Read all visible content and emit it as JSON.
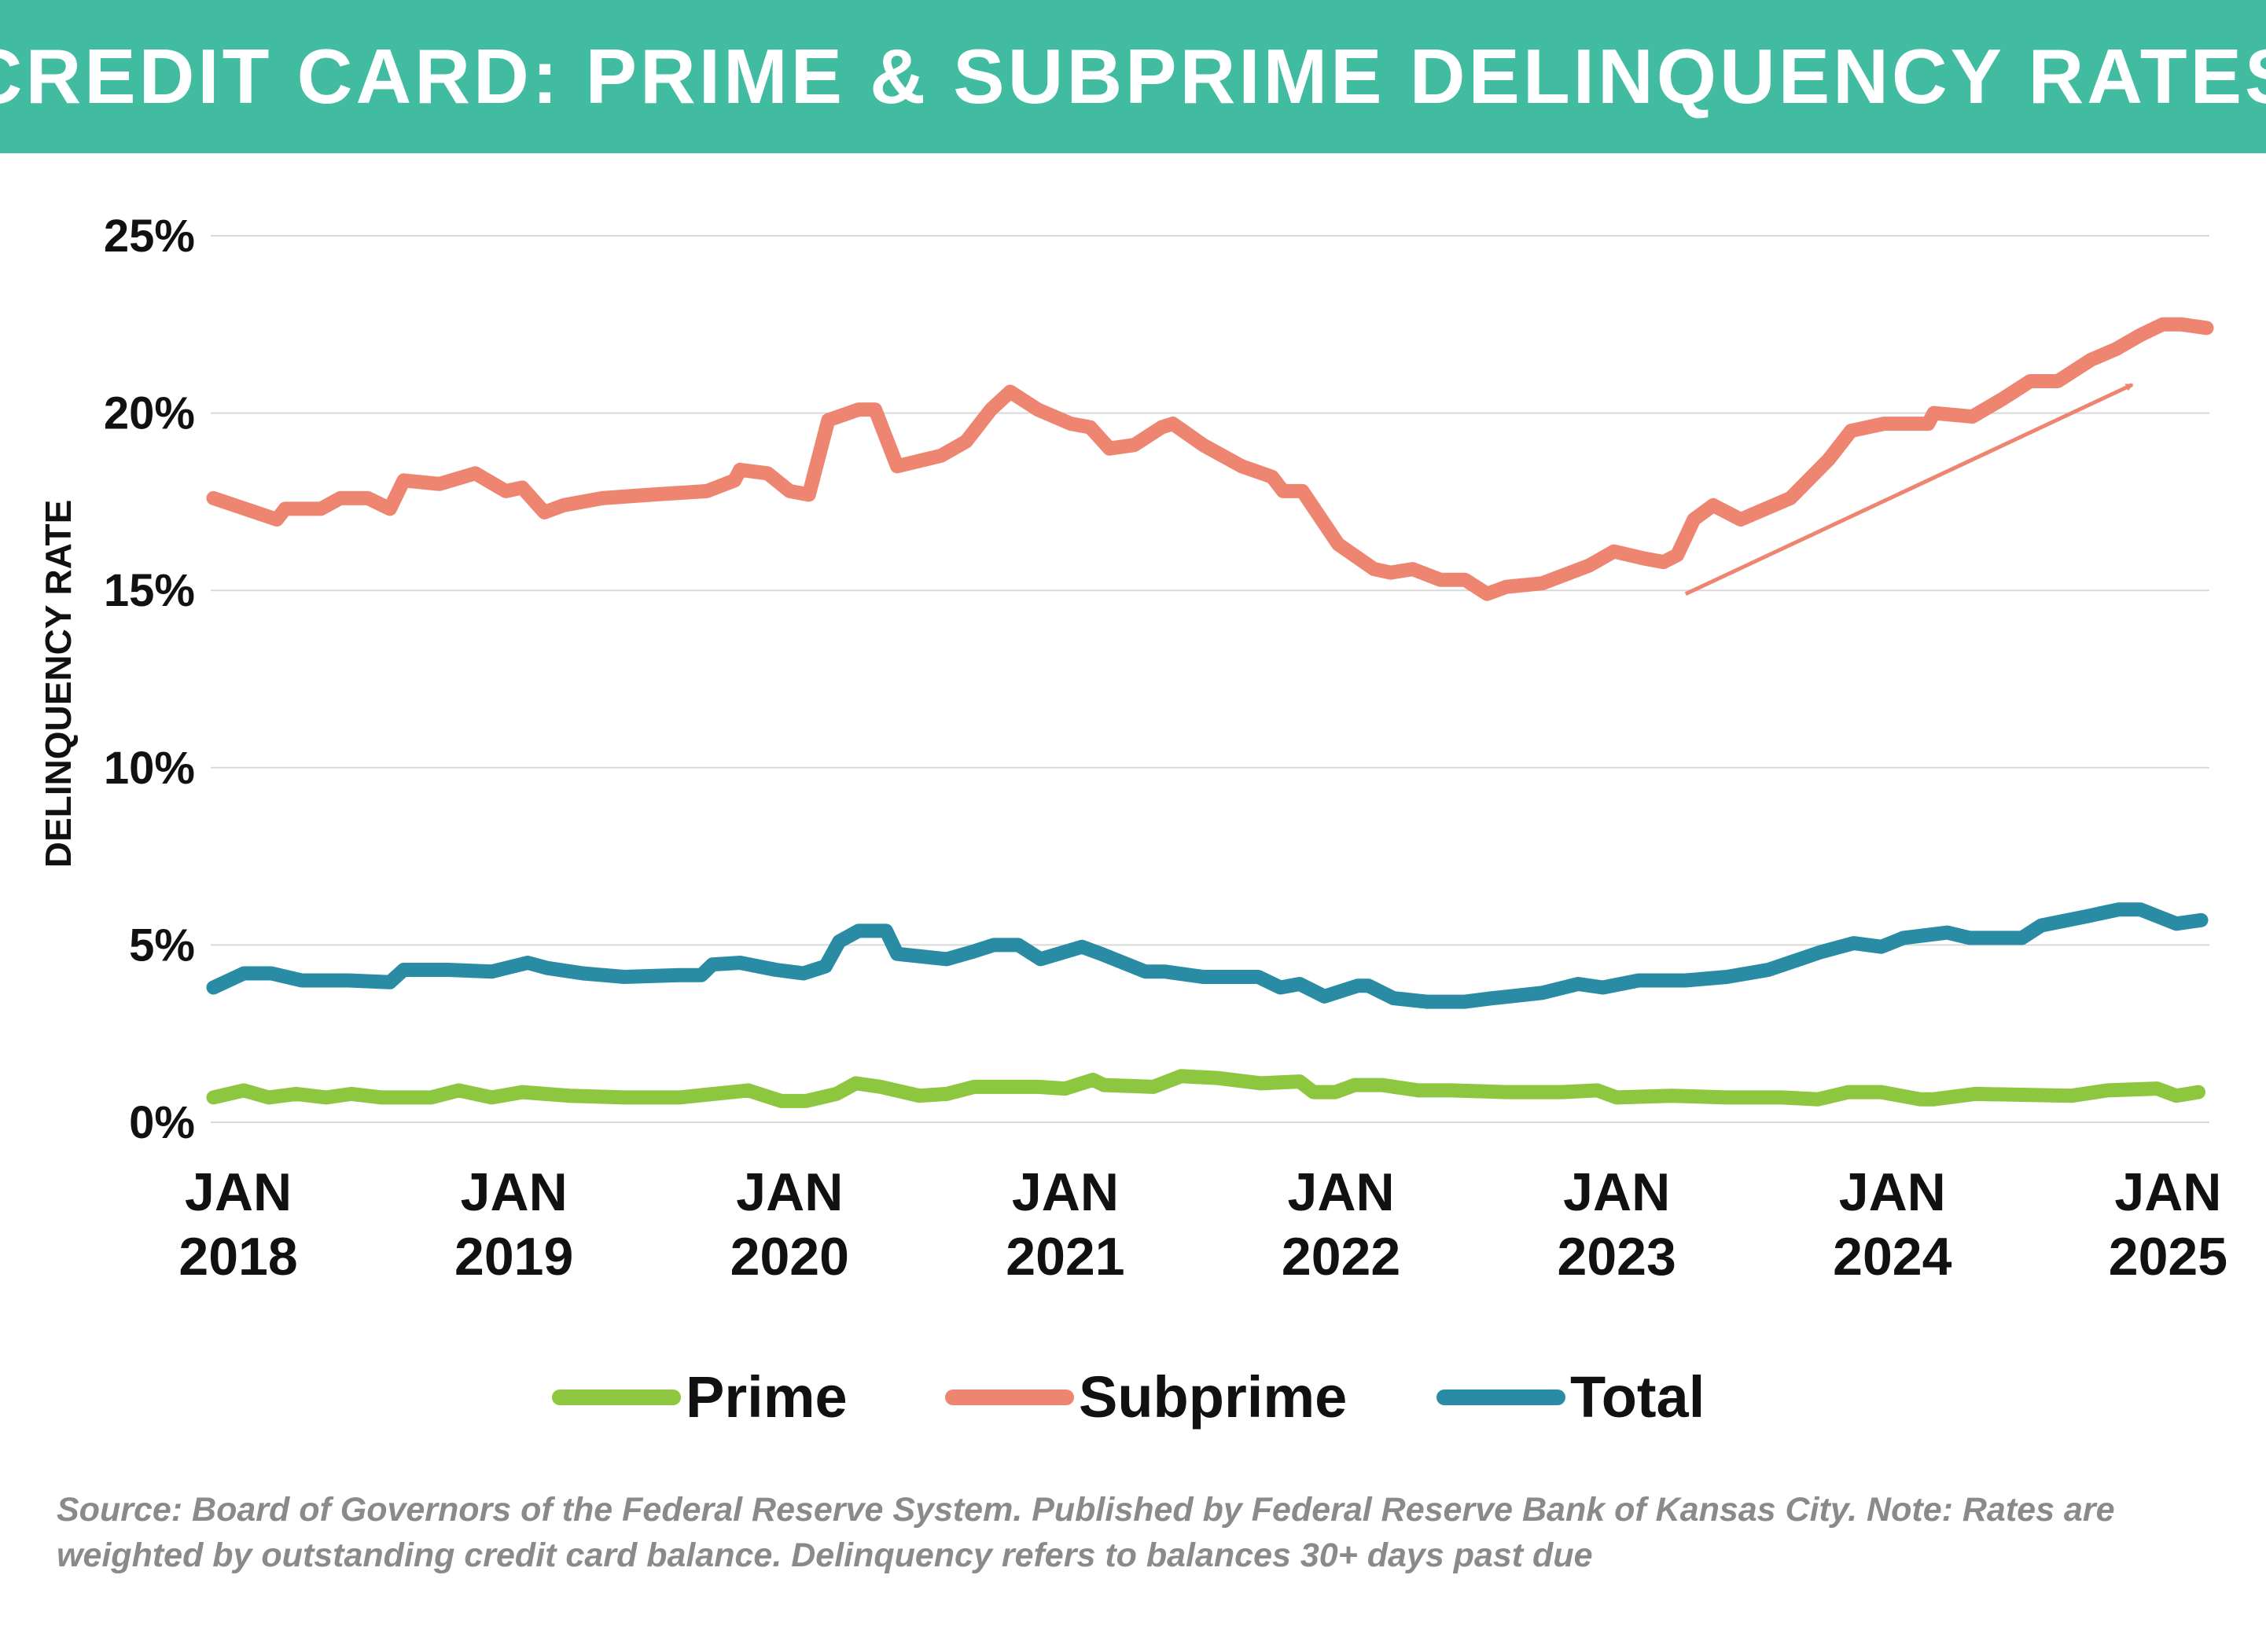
{
  "theme": {
    "banner_color": "#41BCA0",
    "prime_color": "#8DC63F",
    "subprime_color": "#EE8570",
    "total_color": "#2A8CA4",
    "grid_color": "#D9D9D9",
    "text_color": "#111111"
  },
  "title": "CREDIT CARD: PRIME & SUBPRIME DELINQUENCY RATES",
  "source_note": "Source: Board of Governors of the Federal Reserve System. Published by Federal Reserve Bank of Kansas City. Note: Rates are weighted by outstanding credit card balance. Delinquency refers to balances 30+ days past due",
  "chart_data": {
    "type": "line",
    "title": "CREDIT CARD: PRIME & SUBPRIME DELINQUENCY RATES",
    "xlabel": "",
    "ylabel": "DELINQUENCY RATE",
    "ylim": [
      0,
      25
    ],
    "xlim": [
      2017.9,
      2025.15
    ],
    "grid": true,
    "legend_position": "bottom-center",
    "y_ticks": [
      {
        "value": 0,
        "label": "0%"
      },
      {
        "value": 5,
        "label": "5%"
      },
      {
        "value": 10,
        "label": "10%"
      },
      {
        "value": 15,
        "label": "15%"
      },
      {
        "value": 20,
        "label": "20%"
      },
      {
        "value": 25,
        "label": "25%"
      }
    ],
    "x_ticks": [
      {
        "value": 2018.0,
        "line1": "JAN",
        "line2": "2018"
      },
      {
        "value": 2019.0,
        "line1": "JAN",
        "line2": "2019"
      },
      {
        "value": 2020.0,
        "line1": "JAN",
        "line2": "2020"
      },
      {
        "value": 2021.0,
        "line1": "JAN",
        "line2": "2021"
      },
      {
        "value": 2022.0,
        "line1": "JAN",
        "line2": "2022"
      },
      {
        "value": 2023.0,
        "line1": "JAN",
        "line2": "2023"
      },
      {
        "value": 2024.0,
        "line1": "JAN",
        "line2": "2024"
      },
      {
        "value": 2025.0,
        "line1": "JAN",
        "line2": "2025"
      }
    ],
    "series": [
      {
        "name": "Prime",
        "color": "#8DC63F",
        "points": [
          [
            2017.91,
            0.7
          ],
          [
            2018.02,
            0.9
          ],
          [
            2018.11,
            0.7
          ],
          [
            2018.21,
            0.8
          ],
          [
            2018.32,
            0.7
          ],
          [
            2018.41,
            0.8
          ],
          [
            2018.52,
            0.7
          ],
          [
            2018.6,
            0.7
          ],
          [
            2018.7,
            0.7
          ],
          [
            2018.8,
            0.9
          ],
          [
            2018.92,
            0.7
          ],
          [
            2019.03,
            0.85
          ],
          [
            2019.2,
            0.75
          ],
          [
            2019.4,
            0.7
          ],
          [
            2019.6,
            0.7
          ],
          [
            2019.85,
            0.9
          ],
          [
            2019.97,
            0.6
          ],
          [
            2020.06,
            0.6
          ],
          [
            2020.17,
            0.8
          ],
          [
            2020.24,
            1.1
          ],
          [
            2020.33,
            1.0
          ],
          [
            2020.47,
            0.75
          ],
          [
            2020.57,
            0.8
          ],
          [
            2020.67,
            1.0
          ],
          [
            2020.9,
            1.0
          ],
          [
            2021.0,
            0.95
          ],
          [
            2021.1,
            1.2
          ],
          [
            2021.14,
            1.05
          ],
          [
            2021.32,
            1.0
          ],
          [
            2021.42,
            1.3
          ],
          [
            2021.55,
            1.25
          ],
          [
            2021.71,
            1.1
          ],
          [
            2021.85,
            1.15
          ],
          [
            2021.9,
            0.85
          ],
          [
            2021.98,
            0.85
          ],
          [
            2022.05,
            1.05
          ],
          [
            2022.15,
            1.05
          ],
          [
            2022.28,
            0.9
          ],
          [
            2022.4,
            0.9
          ],
          [
            2022.6,
            0.85
          ],
          [
            2022.8,
            0.85
          ],
          [
            2022.93,
            0.9
          ],
          [
            2023.0,
            0.7
          ],
          [
            2023.2,
            0.75
          ],
          [
            2023.4,
            0.7
          ],
          [
            2023.6,
            0.7
          ],
          [
            2023.73,
            0.65
          ],
          [
            2023.84,
            0.85
          ],
          [
            2023.96,
            0.85
          ],
          [
            2024.1,
            0.65
          ],
          [
            2024.15,
            0.65
          ],
          [
            2024.3,
            0.8
          ],
          [
            2024.65,
            0.75
          ],
          [
            2024.78,
            0.9
          ],
          [
            2024.96,
            0.95
          ],
          [
            2025.03,
            0.75
          ],
          [
            2025.11,
            0.85
          ]
        ]
      },
      {
        "name": "Subprime",
        "color": "#EE8570",
        "points": [
          [
            2017.91,
            17.6
          ],
          [
            2018.14,
            17.0
          ],
          [
            2018.17,
            17.3
          ],
          [
            2018.3,
            17.3
          ],
          [
            2018.37,
            17.6
          ],
          [
            2018.47,
            17.6
          ],
          [
            2018.55,
            17.3
          ],
          [
            2018.6,
            18.1
          ],
          [
            2018.73,
            18.0
          ],
          [
            2018.86,
            18.3
          ],
          [
            2018.97,
            17.8
          ],
          [
            2019.03,
            17.9
          ],
          [
            2019.11,
            17.2
          ],
          [
            2019.18,
            17.4
          ],
          [
            2019.32,
            17.6
          ],
          [
            2019.5,
            17.7
          ],
          [
            2019.7,
            17.8
          ],
          [
            2019.8,
            18.1
          ],
          [
            2019.82,
            18.4
          ],
          [
            2019.92,
            18.3
          ],
          [
            2020.0,
            17.8
          ],
          [
            2020.07,
            17.7
          ],
          [
            2020.14,
            19.8
          ],
          [
            2020.25,
            20.1
          ],
          [
            2020.31,
            20.1
          ],
          [
            2020.39,
            18.5
          ],
          [
            2020.55,
            18.8
          ],
          [
            2020.64,
            19.2
          ],
          [
            2020.73,
            20.1
          ],
          [
            2020.8,
            20.6
          ],
          [
            2020.9,
            20.1
          ],
          [
            2021.02,
            19.7
          ],
          [
            2021.09,
            19.6
          ],
          [
            2021.16,
            19.0
          ],
          [
            2021.25,
            19.1
          ],
          [
            2021.35,
            19.6
          ],
          [
            2021.39,
            19.7
          ],
          [
            2021.5,
            19.1
          ],
          [
            2021.64,
            18.5
          ],
          [
            2021.75,
            18.2
          ],
          [
            2021.79,
            17.8
          ],
          [
            2021.86,
            17.8
          ],
          [
            2021.99,
            16.3
          ],
          [
            2022.12,
            15.6
          ],
          [
            2022.18,
            15.5
          ],
          [
            2022.26,
            15.6
          ],
          [
            2022.36,
            15.3
          ],
          [
            2022.45,
            15.3
          ],
          [
            2022.53,
            14.9
          ],
          [
            2022.6,
            15.1
          ],
          [
            2022.73,
            15.2
          ],
          [
            2022.9,
            15.7
          ],
          [
            2022.99,
            16.1
          ],
          [
            2023.1,
            15.9
          ],
          [
            2023.17,
            15.8
          ],
          [
            2023.22,
            16.0
          ],
          [
            2023.28,
            17.0
          ],
          [
            2023.35,
            17.4
          ],
          [
            2023.45,
            17.0
          ],
          [
            2023.63,
            17.6
          ],
          [
            2023.77,
            18.7
          ],
          [
            2023.85,
            19.5
          ],
          [
            2023.97,
            19.7
          ],
          [
            2024.04,
            19.7
          ],
          [
            2024.13,
            19.7
          ],
          [
            2024.15,
            20.0
          ],
          [
            2024.29,
            19.9
          ],
          [
            2024.4,
            20.4
          ],
          [
            2024.5,
            20.9
          ],
          [
            2024.6,
            20.9
          ],
          [
            2024.72,
            21.5
          ],
          [
            2024.81,
            21.8
          ],
          [
            2024.9,
            22.2
          ],
          [
            2024.98,
            22.5
          ],
          [
            2025.05,
            22.5
          ],
          [
            2025.14,
            22.4
          ]
        ]
      },
      {
        "name": "Total",
        "color": "#2A8CA4",
        "points": [
          [
            2017.91,
            3.8
          ],
          [
            2018.02,
            4.2
          ],
          [
            2018.12,
            4.2
          ],
          [
            2018.23,
            4.0
          ],
          [
            2018.4,
            4.0
          ],
          [
            2018.55,
            3.95
          ],
          [
            2018.6,
            4.3
          ],
          [
            2018.76,
            4.3
          ],
          [
            2018.92,
            4.25
          ],
          [
            2019.05,
            4.5
          ],
          [
            2019.12,
            4.35
          ],
          [
            2019.25,
            4.2
          ],
          [
            2019.4,
            4.1
          ],
          [
            2019.6,
            4.15
          ],
          [
            2019.68,
            4.15
          ],
          [
            2019.72,
            4.45
          ],
          [
            2019.82,
            4.5
          ],
          [
            2019.95,
            4.3
          ],
          [
            2020.05,
            4.2
          ],
          [
            2020.13,
            4.4
          ],
          [
            2020.18,
            5.1
          ],
          [
            2020.25,
            5.4
          ],
          [
            2020.35,
            5.4
          ],
          [
            2020.39,
            4.75
          ],
          [
            2020.57,
            4.6
          ],
          [
            2020.66,
            4.8
          ],
          [
            2020.74,
            5.0
          ],
          [
            2020.83,
            5.0
          ],
          [
            2020.91,
            4.6
          ],
          [
            2021.06,
            4.95
          ],
          [
            2021.13,
            4.75
          ],
          [
            2021.29,
            4.25
          ],
          [
            2021.36,
            4.25
          ],
          [
            2021.5,
            4.1
          ],
          [
            2021.7,
            4.1
          ],
          [
            2021.78,
            3.8
          ],
          [
            2021.85,
            3.9
          ],
          [
            2021.94,
            3.55
          ],
          [
            2022.06,
            3.85
          ],
          [
            2022.1,
            3.85
          ],
          [
            2022.19,
            3.5
          ],
          [
            2022.31,
            3.4
          ],
          [
            2022.45,
            3.4
          ],
          [
            2022.55,
            3.5
          ],
          [
            2022.73,
            3.65
          ],
          [
            2022.86,
            3.9
          ],
          [
            2022.95,
            3.8
          ],
          [
            2023.08,
            4.0
          ],
          [
            2023.25,
            4.0
          ],
          [
            2023.4,
            4.1
          ],
          [
            2023.55,
            4.3
          ],
          [
            2023.74,
            4.8
          ],
          [
            2023.86,
            5.05
          ],
          [
            2023.96,
            4.95
          ],
          [
            2024.04,
            5.2
          ],
          [
            2024.2,
            5.35
          ],
          [
            2024.28,
            5.2
          ],
          [
            2024.47,
            5.2
          ],
          [
            2024.54,
            5.55
          ],
          [
            2024.7,
            5.8
          ],
          [
            2024.82,
            6.0
          ],
          [
            2024.9,
            6.0
          ],
          [
            2025.03,
            5.6
          ],
          [
            2025.12,
            5.7
          ]
        ]
      }
    ],
    "annotations": [
      {
        "type": "arrow",
        "description": "rising trend",
        "from": [
          2023.25,
          14.9
        ],
        "to": [
          2024.87,
          20.8
        ],
        "color": "#EE8570"
      }
    ]
  }
}
